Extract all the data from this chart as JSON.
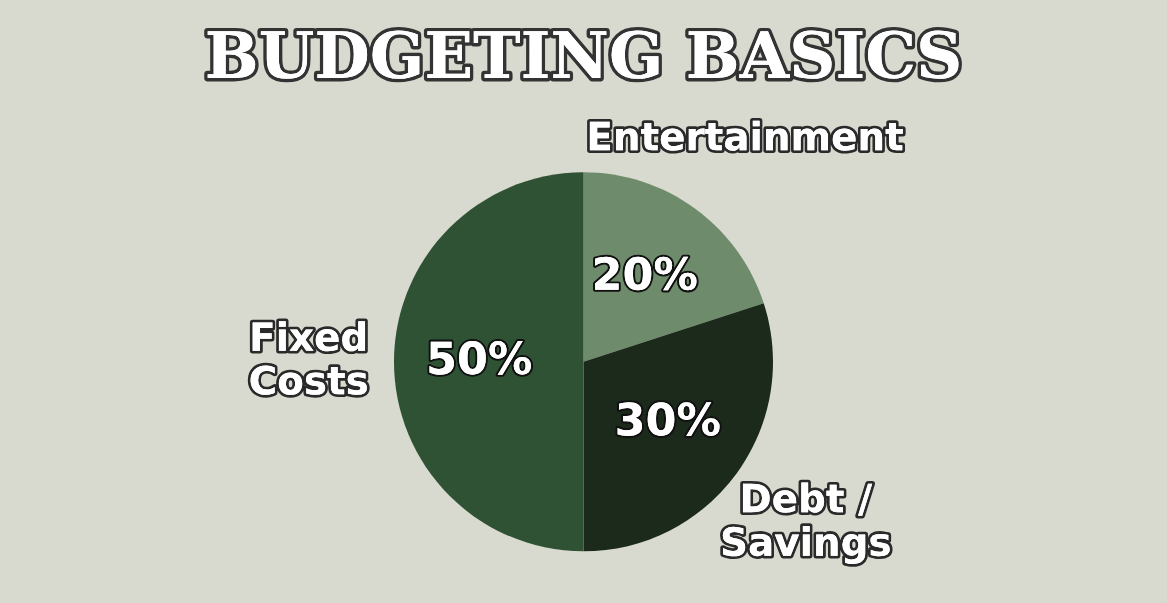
{
  "chart_data": {
    "type": "pie",
    "title": "BUDGETING BASICS",
    "categories": [
      "Entertainment",
      "Debt /\nSavings",
      "Fixed\nCosts"
    ],
    "values": [
      20,
      30,
      50
    ],
    "value_labels": [
      "20%",
      "30%",
      "50%"
    ],
    "colors": [
      "#6e8c6c",
      "#1b2a1b",
      "#2f5234"
    ]
  }
}
